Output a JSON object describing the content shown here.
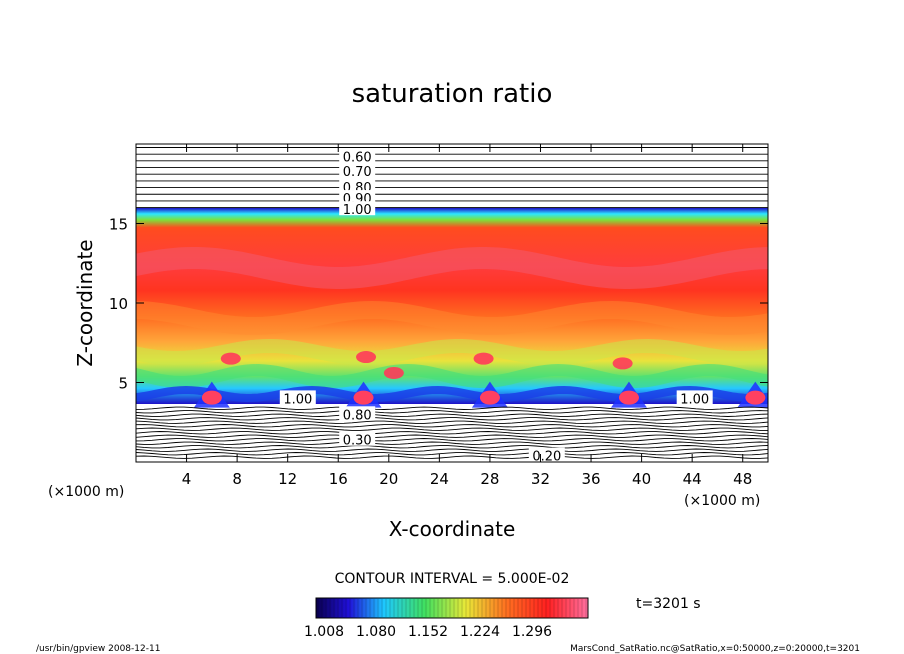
{
  "chart_data": {
    "type": "heatmap",
    "title": "saturation ratio",
    "xlabel": "X-coordinate",
    "ylabel": "Z-coordinate",
    "x_unit_left": "(×1000 m)",
    "x_unit_right": "(×1000 m)",
    "xlim": [
      0,
      50
    ],
    "ylim": [
      0,
      20
    ],
    "x_ticks": [
      4,
      8,
      12,
      16,
      20,
      24,
      28,
      32,
      36,
      40,
      44,
      48
    ],
    "y_ticks": [
      5,
      10,
      15
    ],
    "contour_labels": [
      {
        "text": "0.60",
        "x": 17.5,
        "z": 19.2
      },
      {
        "text": "0.70",
        "x": 17.5,
        "z": 18.3
      },
      {
        "text": "0.80",
        "x": 17.5,
        "z": 17.3
      },
      {
        "text": "0.90",
        "x": 17.5,
        "z": 16.6
      },
      {
        "text": "1.00",
        "x": 17.5,
        "z": 15.9
      },
      {
        "text": "1.00",
        "x": 12.8,
        "z": 4.0
      },
      {
        "text": "1.00",
        "x": 44.2,
        "z": 4.0
      },
      {
        "text": "0.80",
        "x": 17.5,
        "z": 3.0
      },
      {
        "text": "0.30",
        "x": 17.5,
        "z": 1.4
      },
      {
        "text": "0.20",
        "x": 32.5,
        "z": 0.4
      }
    ],
    "contour_interval_text": "CONTOUR INTERVAL = 5.000E-02",
    "colorbar": {
      "ticks": [
        "1.008",
        "1.080",
        "1.152",
        "1.224",
        "1.296"
      ],
      "range": [
        1.0,
        1.3
      ]
    },
    "time_label": "t=3201 s",
    "grid": false,
    "legend": "colorbar-bottom"
  },
  "footer": {
    "left": "/usr/bin/gpview   2008-12-11",
    "right": "MarsCond_SatRatio.nc@SatRatio,x=0:50000,z=0:20000,t=3201"
  }
}
